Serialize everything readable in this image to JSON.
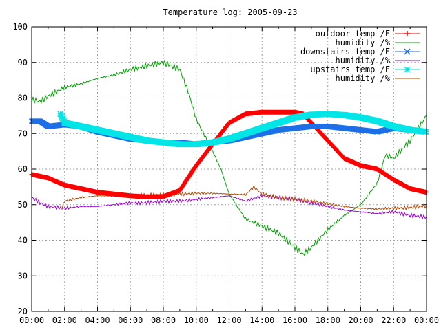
{
  "chart_data": {
    "type": "line",
    "title": "Temperature log: 2005-09-23",
    "xlabel": "",
    "ylabel": "",
    "ylim": [
      20,
      100
    ],
    "yticks": [
      20,
      30,
      40,
      50,
      60,
      70,
      80,
      90,
      100
    ],
    "xlim": [
      "00:00",
      "24:00"
    ],
    "xticks": [
      "00:00",
      "02:00",
      "04:00",
      "06:00",
      "08:00",
      "10:00",
      "12:00",
      "14:00",
      "16:00",
      "18:00",
      "20:00",
      "22:00",
      "00:00"
    ],
    "grid": true,
    "legend_position": "top-right",
    "series": [
      {
        "name": "outdoor temp /F",
        "color": "#ff0000",
        "marker": "plus",
        "x": [
          "00:00",
          "01:00",
          "02:00",
          "03:00",
          "04:00",
          "05:00",
          "06:00",
          "07:00",
          "08:00",
          "09:00",
          "10:00",
          "11:00",
          "12:00",
          "13:00",
          "14:00",
          "15:00",
          "16:00",
          "16:30",
          "17:00",
          "18:00",
          "19:00",
          "20:00",
          "21:00",
          "22:00",
          "23:00",
          "24:00"
        ],
        "values": [
          58.5,
          57.5,
          55.5,
          54.5,
          53.5,
          53,
          52.5,
          52.2,
          52.3,
          54,
          61,
          67,
          73,
          75.5,
          76,
          76,
          76,
          75.5,
          73,
          68,
          63,
          61,
          60,
          57,
          54.5,
          53.5
        ]
      },
      {
        "name": "humidity /%",
        "color": "#00a000",
        "marker": "none",
        "x": [
          "00:00",
          "00:30",
          "01:00",
          "02:00",
          "03:00",
          "04:00",
          "05:00",
          "06:00",
          "07:00",
          "08:00",
          "09:00",
          "09:30",
          "10:00",
          "11:00",
          "11:30",
          "12:00",
          "13:00",
          "14:00",
          "15:00",
          "16:00",
          "16:30",
          "17:00",
          "18:00",
          "19:00",
          "20:00",
          "21:00",
          "21:30",
          "22:00",
          "23:00",
          "24:00"
        ],
        "values": [
          79.5,
          79,
          80.5,
          83,
          84,
          85.5,
          86.5,
          88,
          89,
          90,
          88,
          82,
          74,
          65,
          60,
          53,
          46,
          44,
          42,
          38,
          36,
          38,
          43,
          47,
          50,
          56,
          64,
          63,
          68,
          75
        ]
      },
      {
        "name": "downstairs temp /F",
        "color": "#1c6fe6",
        "marker": "x",
        "x": [
          "00:00",
          "00:30",
          "01:00",
          "02:00",
          "03:00",
          "04:00",
          "05:00",
          "06:00",
          "07:00",
          "08:00",
          "09:00",
          "10:00",
          "11:00",
          "12:00",
          "13:00",
          "14:00",
          "15:00",
          "16:00",
          "17:00",
          "18:00",
          "19:00",
          "20:00",
          "21:00",
          "22:00",
          "23:00",
          "24:00"
        ],
        "values": [
          73.5,
          73.5,
          72,
          72.5,
          72,
          70.5,
          69.5,
          68.5,
          68,
          67.5,
          67.5,
          67,
          67.5,
          68,
          69,
          70,
          71,
          71.5,
          72,
          72,
          71.5,
          71,
          70.5,
          71.5,
          71,
          70.5
        ]
      },
      {
        "name": "humidity /%",
        "color": "#9900cc",
        "marker": "none",
        "x": [
          "00:00",
          "00:30",
          "01:00",
          "02:00",
          "03:00",
          "04:00",
          "05:00",
          "06:00",
          "07:00",
          "08:00",
          "09:00",
          "10:00",
          "11:00",
          "12:00",
          "13:00",
          "14:00",
          "15:00",
          "16:00",
          "17:00",
          "18:00",
          "19:00",
          "20:00",
          "21:00",
          "22:00",
          "23:00",
          "24:00"
        ],
        "values": [
          52,
          50.5,
          49.5,
          49,
          49.5,
          49.5,
          50,
          50.5,
          50.5,
          51,
          51,
          51.5,
          52,
          52.5,
          51,
          52.5,
          52,
          51.5,
          50.5,
          49.5,
          48.5,
          48,
          47.5,
          48,
          47,
          46.5
        ]
      },
      {
        "name": "upstairs temp /F",
        "color": "#00e5e5",
        "marker": "star",
        "x": [
          "01:45",
          "02:00",
          "03:00",
          "04:00",
          "05:00",
          "06:00",
          "07:00",
          "08:00",
          "09:00",
          "10:00",
          "11:00",
          "12:00",
          "13:00",
          "14:00",
          "15:00",
          "16:00",
          "17:00",
          "18:00",
          "19:00",
          "20:00",
          "21:00",
          "22:00",
          "23:00",
          "24:00"
        ],
        "values": [
          75.5,
          73,
          72,
          71,
          70,
          69,
          68,
          67.5,
          67,
          67,
          67.5,
          68.5,
          70,
          71.5,
          73,
          74.5,
          75.3,
          75.5,
          75.2,
          74.5,
          73.5,
          72,
          71,
          70.5
        ]
      },
      {
        "name": "humidity /%",
        "color": "#b34700",
        "marker": "none",
        "x": [
          "01:45",
          "02:00",
          "03:00",
          "04:00",
          "05:00",
          "06:00",
          "07:00",
          "08:00",
          "09:00",
          "10:00",
          "11:00",
          "12:00",
          "13:00",
          "13:30",
          "14:00",
          "15:00",
          "16:00",
          "17:00",
          "18:00",
          "19:00",
          "20:00",
          "21:00",
          "22:00",
          "23:00",
          "24:00"
        ],
        "values": [
          48,
          51,
          52,
          52.5,
          52.5,
          52.5,
          52.7,
          52.8,
          53,
          53.2,
          53.2,
          53,
          52.8,
          55,
          53,
          52,
          51.5,
          51,
          50.2,
          49.5,
          49,
          48.8,
          49,
          49.2,
          49.7
        ]
      }
    ]
  }
}
